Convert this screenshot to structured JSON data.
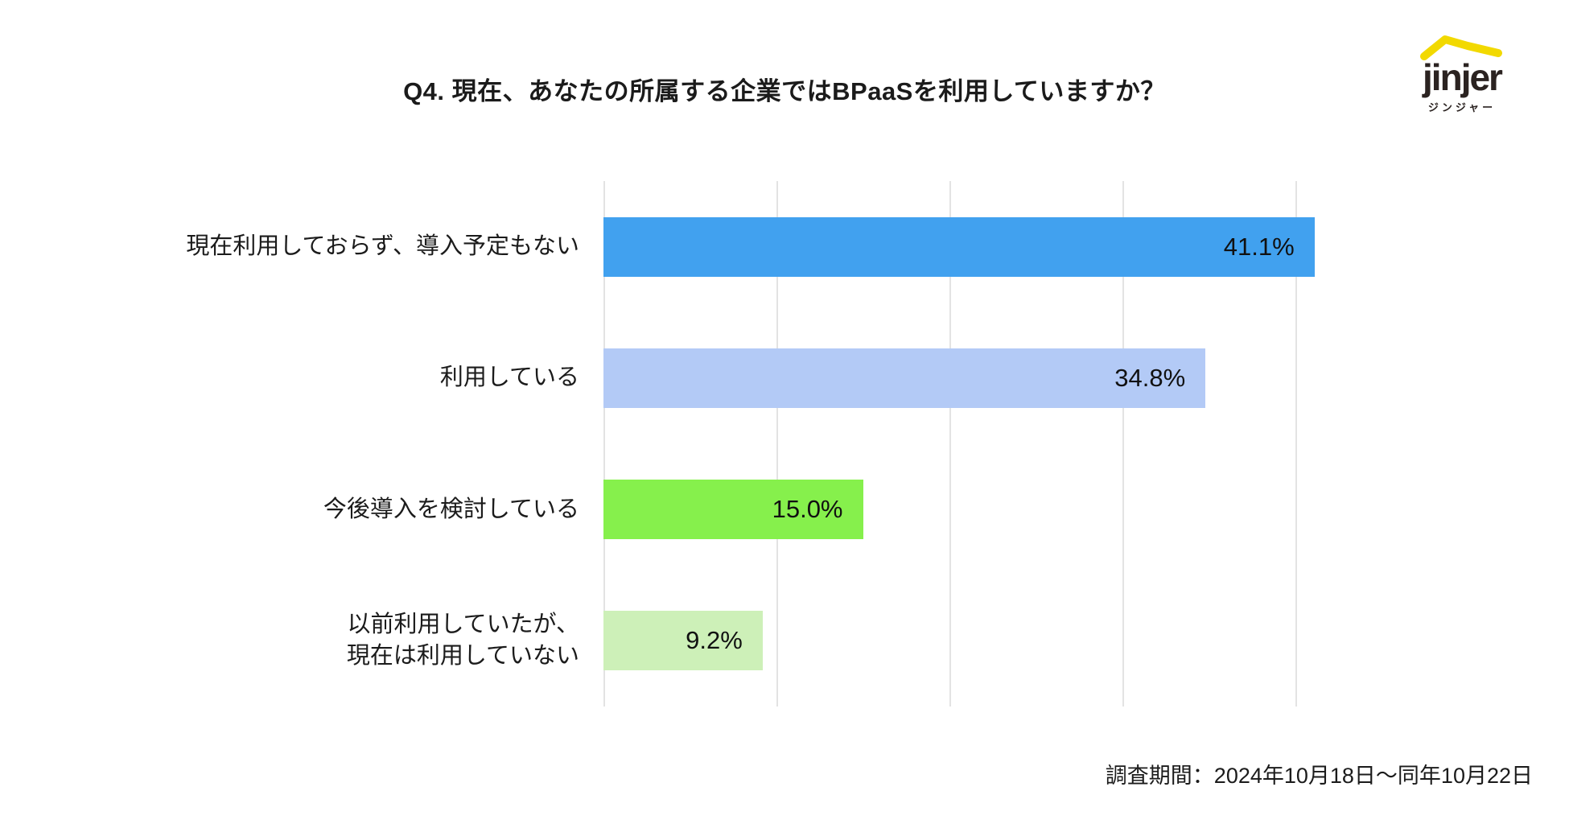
{
  "header": {
    "title": "Q4. 現在、あなたの所属する企業ではBPaaSを利用していますか？"
  },
  "logo": {
    "brand": "jinjer",
    "subtitle": "ジンジャー",
    "zigzag_color": "#f2d900",
    "text_color": "#2b2321"
  },
  "chart_data": {
    "type": "bar",
    "orientation": "horizontal",
    "title": "Q4. 現在、あなたの所属する企業ではBPaaSを利用していますか？",
    "categories": [
      "現在利用しておらず、導入予定もない",
      "利用している",
      "今後導入を検討している",
      "以前利用していたが、\n現在は利用していない"
    ],
    "values": [
      41.1,
      34.8,
      15.0,
      9.2
    ],
    "value_labels": [
      "41.1%",
      "34.8%",
      "15.0%",
      "9.2%"
    ],
    "bar_colors": [
      "#41a1ef",
      "#b3caf6",
      "#86f04c",
      "#cdf0b8"
    ],
    "xlim": [
      0,
      45
    ],
    "gridline_interval_pct": 10,
    "grid_on": true,
    "grid_color": "#e3e3e3",
    "legend": "none"
  },
  "footer": {
    "survey_period": "調査期間：2024年10月18日～同年10月22日"
  }
}
